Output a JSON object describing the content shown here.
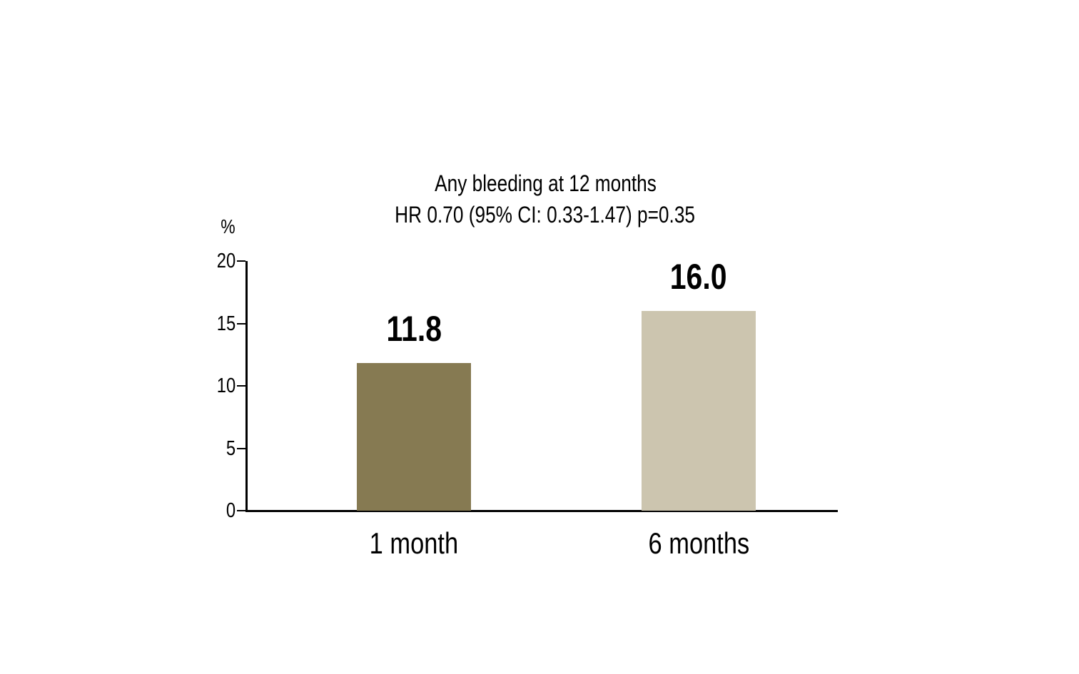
{
  "chart_data": {
    "type": "bar",
    "title": "Any bleeding at 12 months",
    "subtitle": "HR 0.70 (95% CI: 0.33-1.47) p=0.35",
    "ylabel": "%",
    "xlabel": "",
    "ylim": [
      0,
      20
    ],
    "yticks": [
      0,
      5,
      10,
      15,
      20
    ],
    "ytick_labels": [
      "0",
      "5",
      "10",
      "15",
      "20"
    ],
    "categories": [
      "1 month",
      "6 months"
    ],
    "values": [
      11.8,
      16.0
    ],
    "value_labels": [
      "11.8",
      "16.0"
    ],
    "bar_colors": [
      "#867a52",
      "#ccc5af"
    ],
    "axis_color": "#000000",
    "text_color": "#000000",
    "background_color": "#ffffff",
    "grid": false,
    "legend": false
  }
}
